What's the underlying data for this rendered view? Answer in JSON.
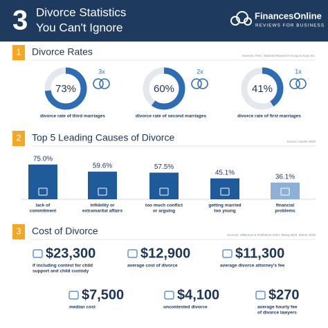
{
  "header": {
    "number": "3",
    "title": [
      "Divorce Statistics",
      "You Can't Ignore"
    ],
    "brand": "FinancesOnline",
    "tagline": "REVIEWS FOR BUSINESS"
  },
  "rates": {
    "number": "1",
    "title": "Divorce Rates",
    "source": "Sources: PwC, National Research Group & Soax Inc.",
    "ylim": [
      0,
      100
    ],
    "values": [
      73,
      60,
      41
    ],
    "value_labels": [
      "73%",
      "60%",
      "41%"
    ],
    "multipliers": [
      "3x",
      "2x",
      "1x"
    ],
    "captions": [
      "divorce rate of third marriages",
      "divorce rate of second marriages",
      "divorce rate of first marriages"
    ]
  },
  "causes": {
    "number": "2",
    "title": "Top 5 Leading Causes of Divorce",
    "source": "Source: Insider 2020",
    "ylim": [
      0,
      100
    ],
    "values": [
      75.0,
      59.6,
      57.5,
      45.1,
      36.1
    ],
    "value_labels": [
      "75.0%",
      "59.6%",
      "57.5%",
      "45.1%",
      "36.1%"
    ],
    "categories": [
      [
        "lack of",
        "commitment"
      ],
      [
        "infidelity or",
        "extramarital affairs"
      ],
      [
        "too much conflict",
        "or arguing"
      ],
      [
        "getting married",
        "too young"
      ],
      [
        "financial",
        "problems"
      ]
    ]
  },
  "costs": {
    "number": "3",
    "title": "Cost of Divorce",
    "source": "Sources: Wilkinson & Finkbeiner 2020, Wang 2020, Bieber 2020",
    "values": [
      23300,
      12900,
      11300,
      7500,
      4100,
      270
    ],
    "value_labels": [
      "$23,300",
      "$12,900",
      "$11,300",
      "$7,500",
      "$4,100",
      "$270"
    ],
    "captions": [
      [
        "if including contest for child",
        "support and child custody"
      ],
      [
        "average cost of divorce"
      ],
      [
        "average divorce attorney's fee"
      ],
      [
        "median cost"
      ],
      [
        "uncontested divorce"
      ],
      [
        "average hourly fee",
        "of divorce lawyers"
      ]
    ]
  }
}
